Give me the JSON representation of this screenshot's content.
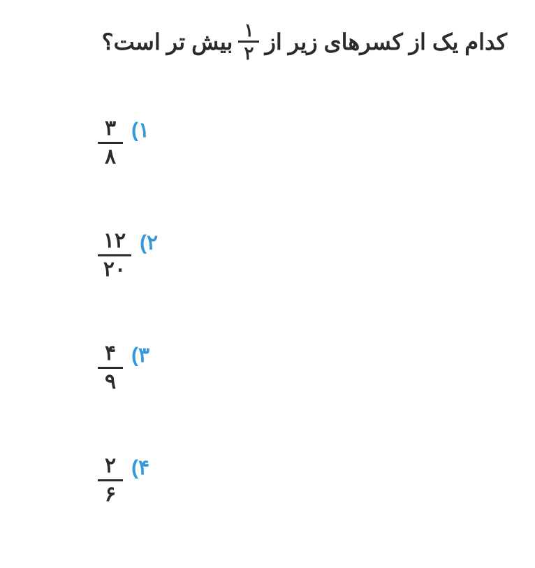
{
  "question": {
    "text_before": "کدام یک از کسرهای زیر از",
    "text_after": "بیش تر است؟",
    "fraction": {
      "numerator": "۱",
      "denominator": "۲"
    }
  },
  "options": [
    {
      "label": "(۱",
      "fraction": {
        "numerator": "۳",
        "denominator": "۸"
      },
      "bar_class": "bar-w1"
    },
    {
      "label": "(۲",
      "fraction": {
        "numerator": "۱۲",
        "denominator": "۲۰"
      },
      "bar_class": "bar-w2"
    },
    {
      "label": "(۳",
      "fraction": {
        "numerator": "۴",
        "denominator": "۹"
      },
      "bar_class": "bar-w1"
    },
    {
      "label": "(۴",
      "fraction": {
        "numerator": "۲",
        "denominator": "۶"
      },
      "bar_class": "bar-w1"
    }
  ],
  "colors": {
    "text": "#2b2b2b",
    "accent": "#3498db",
    "background": "#ffffff"
  }
}
